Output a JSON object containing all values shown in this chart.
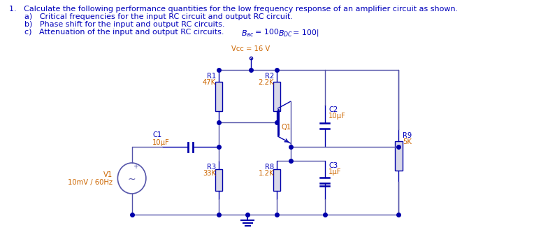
{
  "title_text": "1.   Calculate the following performance quantities for the low frequency response of an amplifier circuit as shown.",
  "item_a": "a)   Critical frequencies for the input RC circuit and output RC circuit.",
  "item_b": "b)   Phase shift for the input and output RC circuits.",
  "item_c": "c)   Attenuation of the input and output RC circuits.",
  "bac_label": "$B_{ac}$",
  "bac_val": "= 100",
  "bdc_label": "$B_{DC}$",
  "bdc_val": "= 100|",
  "vcc_label": "Vcc = 16 V",
  "r1_label": "R1",
  "r1_val": "47K",
  "r2_label": "R2",
  "r2_val": "2.2K",
  "c2_label": "C2",
  "c2_val": "10μF",
  "c1_label": "C1",
  "c1_val": "10μF",
  "q1_label": "Q1",
  "r9_label": "R9",
  "r9_val": "5K",
  "v1_label": "V1",
  "v1_val": "10mV / 60Hz",
  "r3_label": "R3",
  "r3_val": "33K",
  "r8_label": "R8",
  "r8_val": "1.2K",
  "c3_label": "C3",
  "c3_val": "1μF",
  "text_color": "#0000bb",
  "line_color": "#5555aa",
  "component_color": "#0000aa",
  "label_color": "#cc6600",
  "bg_color": "#ffffff",
  "font_size_title": 8.0,
  "font_size_labels": 7.2
}
